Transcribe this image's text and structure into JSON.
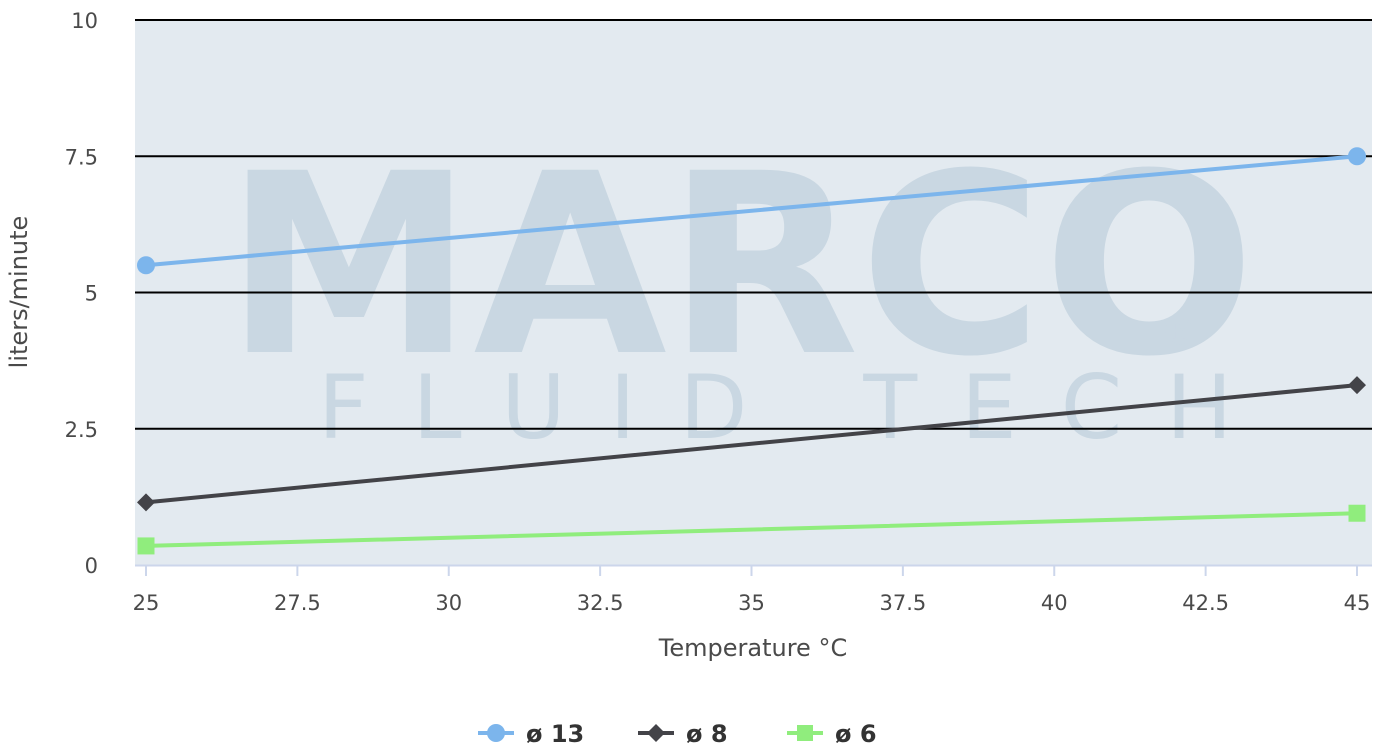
{
  "chart_data": {
    "type": "line",
    "xlabel": "Temperature °C",
    "ylabel": "liters/minute",
    "xlim": [
      25,
      45
    ],
    "ylim": [
      0,
      10
    ],
    "x_ticks": [
      "25",
      "27.5",
      "30",
      "32.5",
      "35",
      "37.5",
      "40",
      "42.5",
      "45"
    ],
    "y_ticks": [
      "0",
      "2.5",
      "5",
      "7.5",
      "10"
    ],
    "grid": true,
    "legend_position": "bottom-center",
    "series": [
      {
        "name": "ø 13",
        "color": "#7cb5ec",
        "marker": "circle",
        "x": [
          25,
          45
        ],
        "y": [
          5.5,
          7.5
        ]
      },
      {
        "name": "ø 8",
        "color": "#434348",
        "marker": "diamond",
        "x": [
          25,
          45
        ],
        "y": [
          1.15,
          3.3
        ]
      },
      {
        "name": "ø 6",
        "color": "#90ed7d",
        "marker": "square",
        "x": [
          25,
          45
        ],
        "y": [
          0.35,
          0.95
        ]
      }
    ]
  },
  "watermark": {
    "brand": "MARCO",
    "subtitle": "FLUID TECH",
    "registered_mark": "®"
  },
  "colors": {
    "plot_background": "#e3eaf0",
    "gridline": "#000000",
    "axis_line": "#ccd6eb"
  }
}
